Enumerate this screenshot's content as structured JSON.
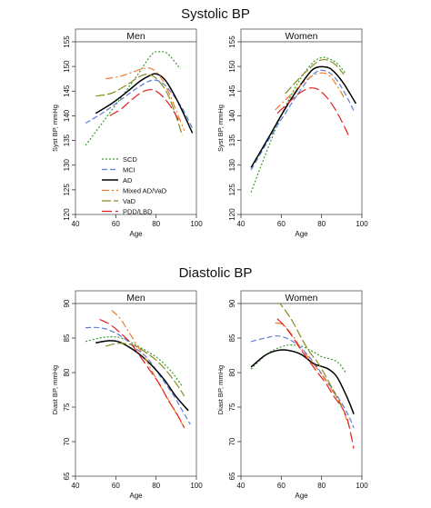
{
  "sections": [
    {
      "title": "Systolic BP"
    },
    {
      "title": "Diastolic BP"
    }
  ],
  "legend": {
    "entries": [
      {
        "name": "SCD",
        "color": "#3a9a2e",
        "dash": "2,2"
      },
      {
        "name": "MCI",
        "color": "#5b7fd6",
        "dash": "6,3"
      },
      {
        "name": "AD",
        "color": "#000000",
        "dash": ""
      },
      {
        "name": "Mixed AD/VaD",
        "color": "#f07a2a",
        "dash": "8,3,2,3"
      },
      {
        "name": "VaD",
        "color": "#8a8a1e",
        "dash": "10,3"
      },
      {
        "name": "PDD/LBD",
        "color": "#e02020",
        "dash": "11,4"
      }
    ]
  },
  "chart_data": [
    {
      "type": "line",
      "title": "Men",
      "xlabel": "Age",
      "ylabel": "Syst BP, mmHg",
      "xlim": [
        40,
        100
      ],
      "ylim": [
        120,
        155
      ],
      "xticks": [
        40,
        60,
        80,
        100
      ],
      "yticks": [
        120,
        125,
        130,
        135,
        140,
        145,
        150,
        155
      ],
      "series": [
        {
          "name": "SCD",
          "x": [
            45,
            55,
            65,
            72,
            78,
            82,
            86,
            92
          ],
          "y": [
            134,
            139.5,
            145,
            149,
            152.5,
            153,
            152.5,
            149.5
          ]
        },
        {
          "name": "MCI",
          "x": [
            45,
            55,
            65,
            72,
            78,
            83,
            88,
            93,
            98
          ],
          "y": [
            138.5,
            141,
            144,
            146,
            147.2,
            146.7,
            144.5,
            141.5,
            137.5
          ]
        },
        {
          "name": "AD",
          "x": [
            50,
            58,
            66,
            72,
            77,
            80,
            84,
            88,
            93,
            98
          ],
          "y": [
            140.5,
            142.5,
            145,
            147,
            148.2,
            148.5,
            147.5,
            145,
            141,
            136.5
          ]
        },
        {
          "name": "Mixed AD/VaD",
          "x": [
            55,
            62,
            68,
            74,
            78,
            82,
            86,
            90,
            94
          ],
          "y": [
            147.5,
            148,
            148.8,
            149.6,
            149.5,
            148,
            145,
            141,
            137
          ]
        },
        {
          "name": "VaD",
          "x": [
            50,
            58,
            66,
            72,
            76,
            80,
            85,
            89,
            93
          ],
          "y": [
            144,
            144.6,
            146.4,
            148,
            148.4,
            147.6,
            145,
            141,
            136
          ]
        },
        {
          "name": "PDD/LBD",
          "x": [
            57,
            63,
            68,
            73,
            77,
            80,
            84,
            88,
            92
          ],
          "y": [
            140,
            141.5,
            143.3,
            144.8,
            145.3,
            145,
            143.6,
            141.4,
            138.5
          ]
        }
      ]
    },
    {
      "type": "line",
      "title": "Women",
      "xlabel": "Age",
      "ylabel": "Syst BP, mmHg",
      "xlim": [
        40,
        100
      ],
      "ylim": [
        120,
        155
      ],
      "xticks": [
        40,
        60,
        80,
        100
      ],
      "yticks": [
        120,
        125,
        130,
        135,
        140,
        145,
        150,
        155
      ],
      "series": [
        {
          "name": "SCD",
          "x": [
            45,
            52,
            60,
            68,
            75,
            80,
            84,
            88,
            92
          ],
          "y": [
            124.5,
            132,
            140,
            146.5,
            150.5,
            151.8,
            151.5,
            150.5,
            148.5
          ]
        },
        {
          "name": "MCI",
          "x": [
            45,
            55,
            62,
            70,
            76,
            81,
            86,
            91,
            96
          ],
          "y": [
            129,
            136,
            140.5,
            145.5,
            148.5,
            149.2,
            148,
            145,
            141
          ]
        },
        {
          "name": "AD",
          "x": [
            45,
            55,
            62,
            70,
            76,
            82,
            86,
            91,
            97
          ],
          "y": [
            129.5,
            136.5,
            141.5,
            146.5,
            149.5,
            149.9,
            149,
            146.5,
            142.5
          ]
        },
        {
          "name": "Mixed AD/VaD",
          "x": [
            57,
            63,
            69,
            75,
            80,
            84,
            88,
            91
          ],
          "y": [
            141.2,
            143.6,
            146,
            148,
            148.7,
            148.1,
            145.9,
            143.8
          ]
        },
        {
          "name": "VaD",
          "x": [
            62,
            68,
            74,
            79,
            83,
            87,
            91
          ],
          "y": [
            144.5,
            147.2,
            149.6,
            151.2,
            151.3,
            150.3,
            148.4
          ]
        },
        {
          "name": "PDD/LBD",
          "x": [
            58,
            64,
            69,
            74,
            78,
            82,
            86,
            90,
            94
          ],
          "y": [
            140.5,
            142.8,
            144.6,
            145.6,
            145.4,
            144,
            141.8,
            138.9,
            135.5
          ]
        }
      ]
    },
    {
      "type": "line",
      "title": "Men",
      "xlabel": "Age",
      "ylabel": "Diast BP, mmHg",
      "xlim": [
        40,
        100
      ],
      "ylim": [
        65,
        90
      ],
      "xticks": [
        40,
        60,
        80,
        100
      ],
      "yticks": [
        65,
        70,
        75,
        80,
        85,
        90
      ],
      "series": [
        {
          "name": "SCD",
          "x": [
            45,
            52,
            58,
            64,
            70,
            76,
            82,
            88,
            93
          ],
          "y": [
            84.5,
            85,
            85.2,
            84.9,
            84,
            83,
            81.8,
            80,
            78
          ]
        },
        {
          "name": "MCI",
          "x": [
            45,
            52,
            58,
            64,
            70,
            76,
            82,
            88,
            93,
            97
          ],
          "y": [
            86.5,
            86.5,
            86,
            85,
            83.5,
            82,
            79.5,
            77,
            74.5,
            72.5
          ]
        },
        {
          "name": "AD",
          "x": [
            50,
            56,
            61,
            66,
            72,
            78,
            84,
            90,
            96
          ],
          "y": [
            84.3,
            84.6,
            84.5,
            83.8,
            82.6,
            81,
            79,
            76.5,
            74.5
          ]
        },
        {
          "name": "Mixed AD/VaD",
          "x": [
            58,
            62,
            66,
            70,
            74,
            78,
            82,
            86,
            90,
            94
          ],
          "y": [
            89,
            87.9,
            86.1,
            84.2,
            82.4,
            80.2,
            78.1,
            76.1,
            74.1,
            72
          ]
        },
        {
          "name": "VaD",
          "x": [
            55,
            60,
            65,
            70,
            75,
            80,
            85,
            90,
            94
          ],
          "y": [
            83.8,
            84.2,
            84.2,
            83.8,
            82.9,
            81.8,
            80.3,
            78.4,
            76.6
          ]
        },
        {
          "name": "PDD/LBD",
          "x": [
            52,
            57,
            62,
            67,
            72,
            77,
            82,
            86,
            90,
            94
          ],
          "y": [
            87.7,
            87,
            85.8,
            84.4,
            82.4,
            80.3,
            78.2,
            76,
            74.2,
            72
          ]
        }
      ]
    },
    {
      "type": "line",
      "title": "Women",
      "xlabel": "Age",
      "ylabel": "Diast BP, mmHg",
      "xlim": [
        40,
        100
      ],
      "ylim": [
        65,
        90
      ],
      "xticks": [
        40,
        60,
        80,
        100
      ],
      "yticks": [
        65,
        70,
        75,
        80,
        85,
        90
      ],
      "series": [
        {
          "name": "SCD",
          "x": [
            45,
            52,
            58,
            64,
            70,
            76,
            80,
            84,
            88,
            92
          ],
          "y": [
            80.5,
            82.5,
            83.5,
            84,
            83.8,
            83,
            82.3,
            82,
            81.5,
            80
          ]
        },
        {
          "name": "MCI",
          "x": [
            45,
            52,
            58,
            64,
            70,
            76,
            82,
            88,
            93,
            96
          ],
          "y": [
            84.5,
            85,
            85.3,
            84.8,
            83.5,
            81.5,
            79,
            76.5,
            74,
            72
          ]
        },
        {
          "name": "AD",
          "x": [
            45,
            52,
            58,
            64,
            70,
            76,
            80,
            84,
            88,
            93,
            96
          ],
          "y": [
            80.8,
            82.5,
            83.2,
            83.2,
            82.6,
            81.3,
            80.9,
            80.4,
            79.2,
            76.2,
            74
          ]
        },
        {
          "name": "Mixed AD/VaD",
          "x": [
            57,
            61,
            66,
            70,
            74,
            78,
            82,
            86,
            90,
            93
          ],
          "y": [
            87.2,
            86.9,
            85.2,
            83.4,
            82,
            80.5,
            78.9,
            77.1,
            75.2,
            72.6
          ]
        },
        {
          "name": "VaD",
          "x": [
            58,
            62,
            66,
            70,
            74,
            78,
            82,
            86,
            90
          ],
          "y": [
            90.5,
            89,
            87.2,
            85,
            83,
            81.5,
            79.5,
            77.3,
            75
          ]
        },
        {
          "name": "PDD/LBD",
          "x": [
            58,
            62,
            66,
            70,
            74,
            78,
            82,
            86,
            90,
            93,
            96
          ],
          "y": [
            87.8,
            86.6,
            85,
            83.2,
            81.6,
            80,
            78.5,
            76.6,
            75,
            73,
            69
          ]
        }
      ]
    }
  ]
}
